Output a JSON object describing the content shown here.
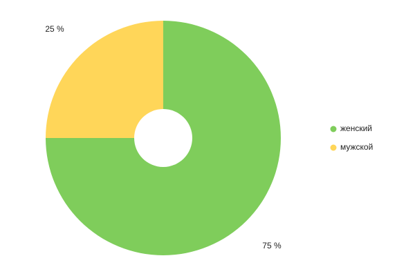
{
  "chart_data": {
    "type": "donut",
    "categories": [
      "женский",
      "мужской"
    ],
    "values": [
      75,
      25
    ],
    "value_labels": [
      "75 %",
      "25 %"
    ],
    "colors": [
      "#7fcd5b",
      "#ffd659"
    ],
    "legend": "right"
  }
}
